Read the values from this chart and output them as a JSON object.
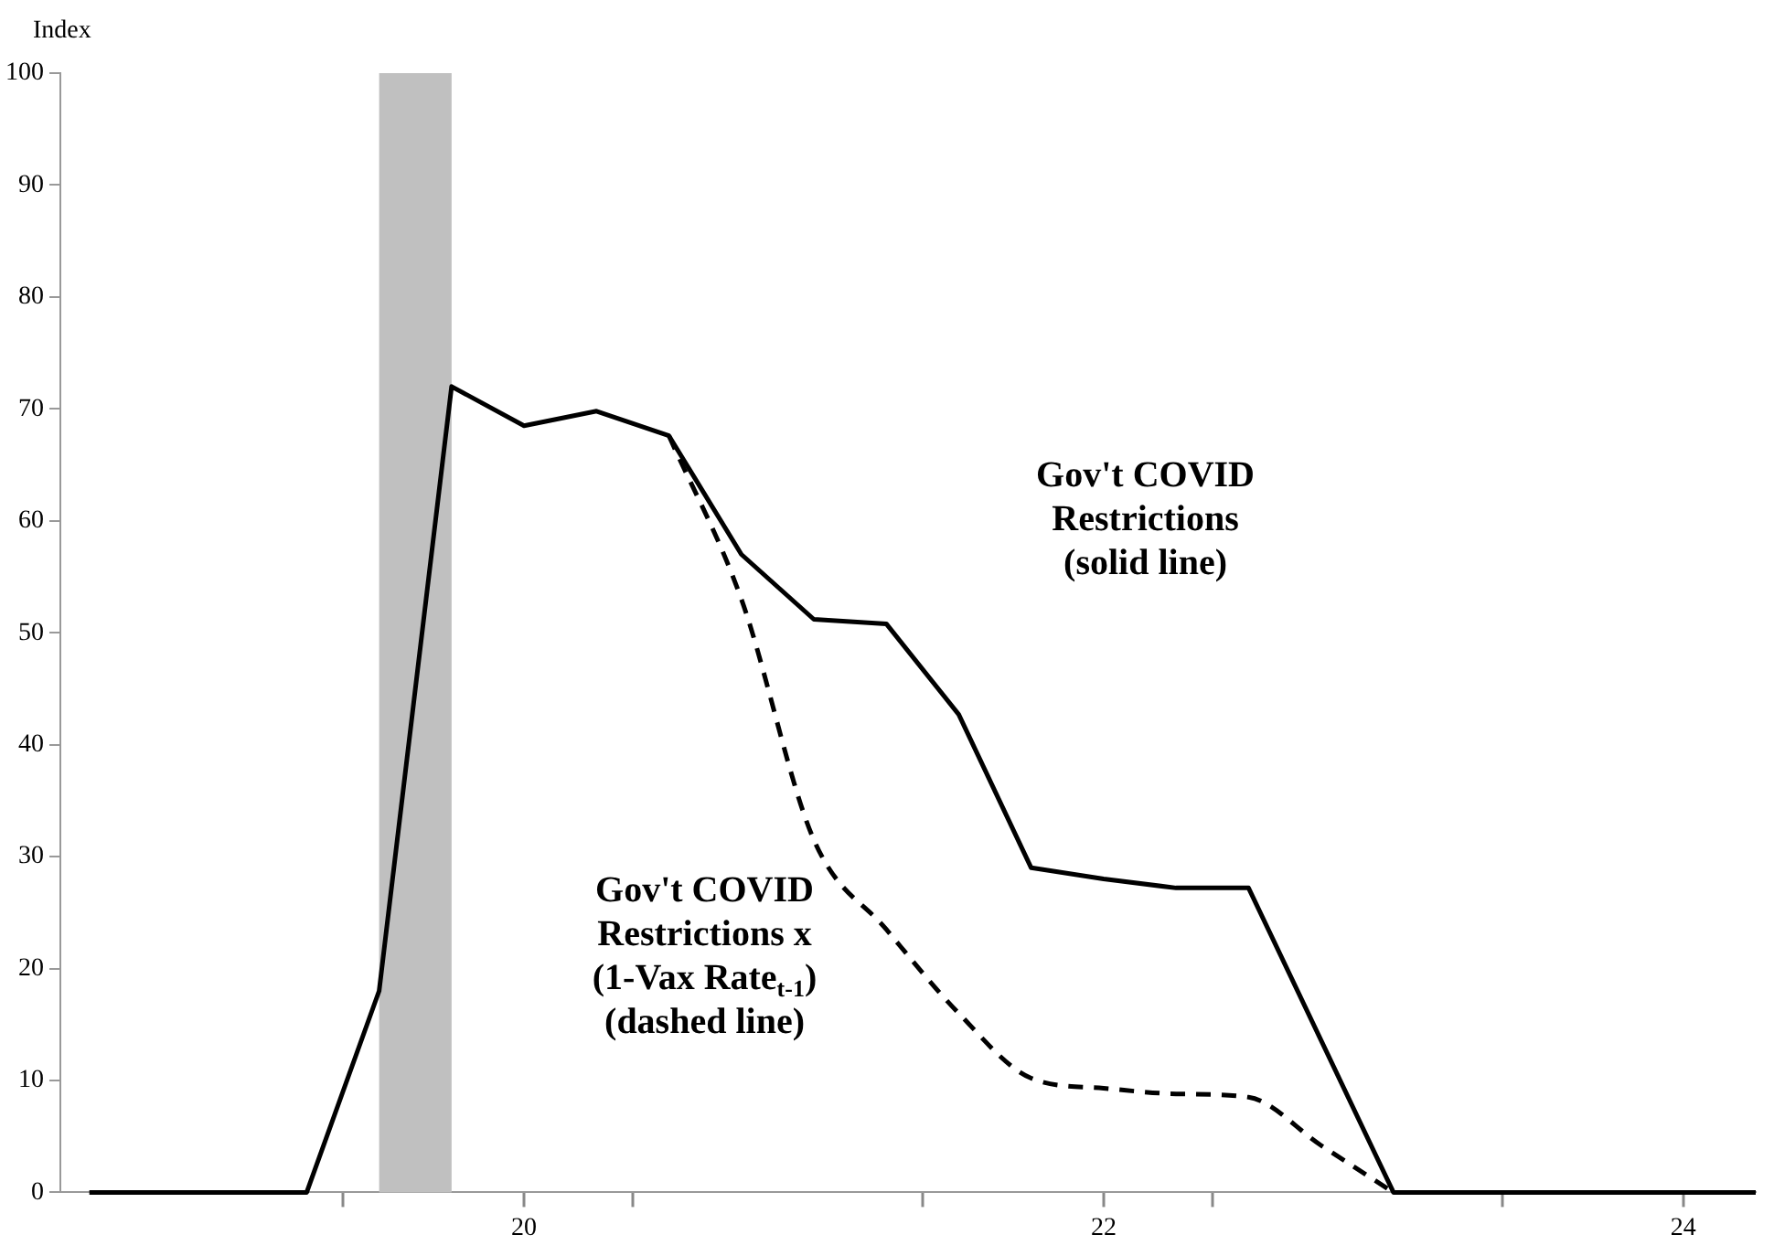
{
  "chart_data": {
    "type": "line",
    "ylabel": "Index",
    "x": [
      18.5,
      18.75,
      19.0,
      19.25,
      19.5,
      19.75,
      20.0,
      20.25,
      20.5,
      20.75,
      21.0,
      21.25,
      21.5,
      21.75,
      22.0,
      22.25,
      22.5,
      22.75,
      23.0,
      23.25,
      23.5,
      23.75,
      24.0,
      24.25
    ],
    "series": [
      {
        "color": "#000000",
        "line_style": "solid",
        "values": [
          0,
          0,
          0,
          0,
          18,
          72,
          68.5,
          69.8,
          67.6,
          57,
          51.2,
          50.8,
          42.7,
          29,
          28,
          27.2,
          27.2,
          13.6,
          0,
          0,
          0,
          0,
          0,
          0
        ]
      },
      {
        "color": "#000000",
        "line_style": "dashed",
        "values": [
          null,
          null,
          null,
          null,
          null,
          null,
          null,
          null,
          67.6,
          53,
          31.5,
          23.5,
          16,
          10.2,
          9.3,
          8.8,
          8.5,
          4.2,
          0,
          null,
          null,
          null,
          null,
          null
        ]
      }
    ],
    "xlim": [
      18.4,
      24.25
    ],
    "xticks": [
      {
        "value": 19.375,
        "label": null
      },
      {
        "value": 20,
        "label": "20"
      },
      {
        "value": 20.375,
        "label": null
      },
      {
        "value": 21.375,
        "label": null
      },
      {
        "value": 22,
        "label": "22"
      },
      {
        "value": 22.375,
        "label": null
      },
      {
        "value": 23.375,
        "label": null
      },
      {
        "value": 24,
        "label": "24"
      }
    ],
    "ylim": [
      0,
      100
    ],
    "yticks": [
      0,
      10,
      20,
      30,
      40,
      50,
      60,
      70,
      80,
      90,
      100
    ],
    "bands": [
      {
        "axis": "x",
        "from": 19.5,
        "to": 19.75,
        "color": "#c0c0c0"
      }
    ],
    "annotations": [
      "Gov't COVID\nRestrictions\n(solid line)",
      "Gov't COVID\nRestrictions x\n(1-Vax Rate$_{t-1}$)\n(dashed line)"
    ],
    "grid": false,
    "legend": false,
    "marker": "none"
  }
}
